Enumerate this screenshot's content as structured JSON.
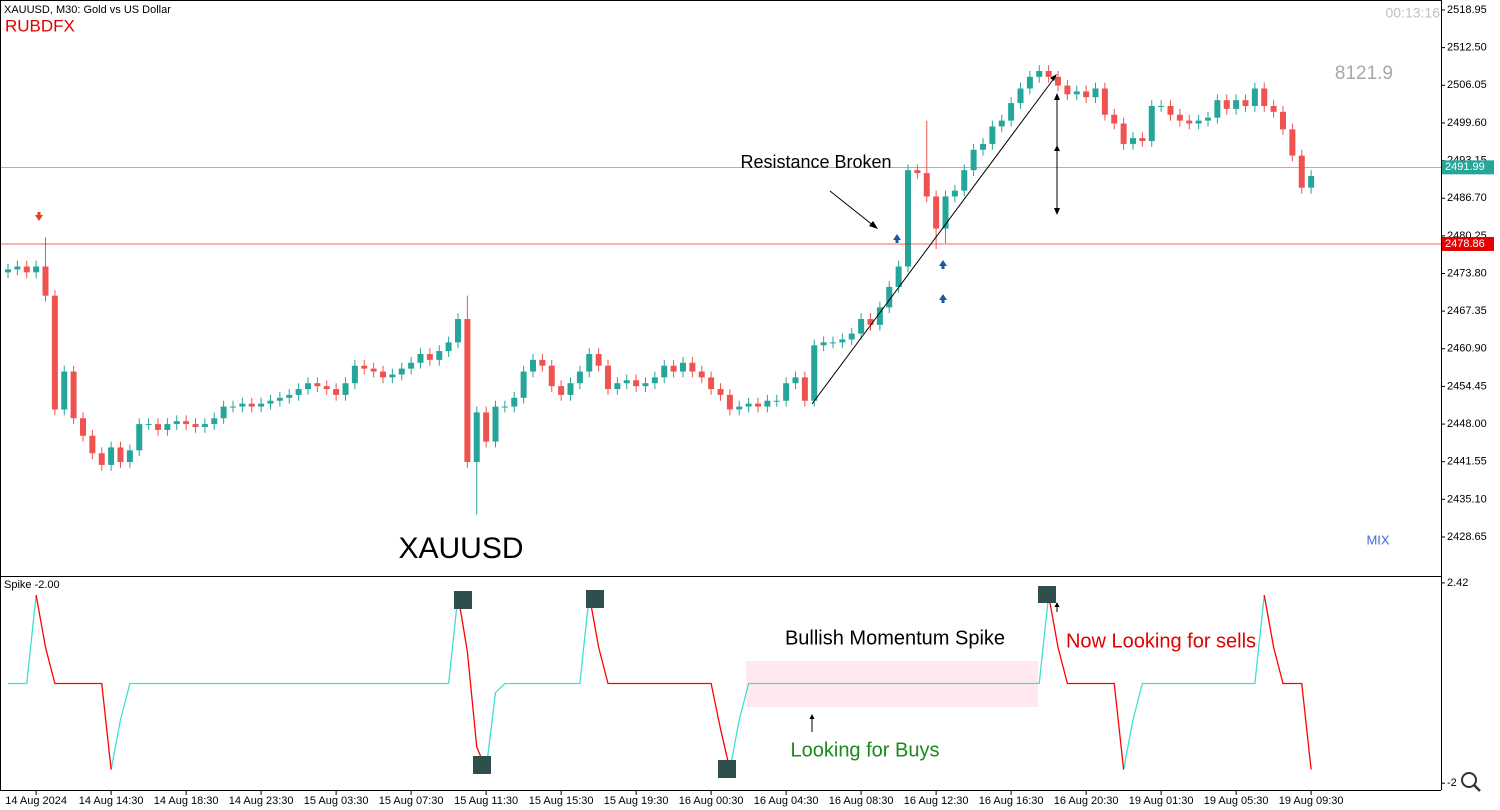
{
  "chart_data": [
    {
      "type": "candlestick",
      "title": "XAUUSD, M30:  Gold vs US Dollar",
      "broker": "RUBDFX",
      "timer": "00:13:16",
      "annotations": [
        "8121.9",
        "Resistance Broken",
        "XAUUSD",
        "MIX"
      ],
      "up_color": "#26a69a",
      "down_color": "#ef5350",
      "ylim": [
        2422.14,
        2520.32
      ],
      "yticks": [
        2518.95,
        {
          "value": 2512.5,
          "label": "2512.50"
        },
        2506.05,
        {
          "value": 2499.6,
          "label": "2499.60"
        },
        2493.15,
        {
          "value": 2486.7,
          "label": "2486.70"
        },
        2480.25,
        {
          "value": 2473.8,
          "label": "2473.80"
        },
        2467.35,
        {
          "value": 2460.9,
          "label": "2460.90"
        },
        2454.45,
        {
          "value": 2448,
          "label": "2448.00"
        },
        2441.55,
        {
          "value": 2435.1,
          "label": "2435.10"
        },
        2428.65
      ],
      "price_lines": [
        {
          "value": 2478.86,
          "color": "#e60000"
        },
        {
          "value": 2491.99,
          "color": "#26a69a"
        }
      ],
      "categories": [
        null,
        null,
        null,
        "14 Aug 2024",
        null,
        null,
        null,
        null,
        null,
        null,
        null,
        "14 Aug 14:30",
        null,
        null,
        null,
        null,
        null,
        null,
        null,
        "14 Aug 18:30",
        null,
        null,
        null,
        null,
        null,
        null,
        null,
        "14 Aug 23:30",
        null,
        null,
        null,
        null,
        null,
        null,
        null,
        "15 Aug 03:30",
        null,
        null,
        null,
        null,
        null,
        null,
        null,
        "15 Aug 07:30",
        null,
        null,
        null,
        null,
        null,
        null,
        null,
        "15 Aug 11:30",
        null,
        null,
        null,
        null,
        null,
        null,
        null,
        "15 Aug 15:30",
        null,
        null,
        null,
        null,
        null,
        null,
        null,
        "15 Aug 19:30",
        null,
        null,
        null,
        null,
        null,
        null,
        null,
        "16 Aug 00:30",
        null,
        null,
        null,
        null,
        null,
        null,
        null,
        "16 Aug 04:30",
        null,
        null,
        null,
        null,
        null,
        null,
        null,
        "16 Aug 08:30",
        null,
        null,
        null,
        null,
        null,
        null,
        null,
        "16 Aug 12:30",
        null,
        null,
        null,
        null,
        null,
        null,
        null,
        "16 Aug 16:30",
        null,
        null,
        null,
        null,
        null,
        null,
        null,
        "16 Aug 20:30",
        null,
        null,
        null,
        null,
        null,
        null,
        null,
        "19 Aug 01:30",
        null,
        null,
        null,
        null,
        null,
        null,
        null,
        "19 Aug 05:30",
        null,
        null,
        null,
        null,
        null,
        null,
        null,
        "19 Aug 09:30"
      ],
      "open": [
        2474,
        2474.5,
        2475,
        2474,
        2475,
        2470,
        2450.5,
        2457,
        2449,
        2446,
        2443,
        2441,
        2444,
        2441.5,
        2443.5,
        2448,
        2448,
        2447,
        2448,
        2448.5,
        2448,
        2447.5,
        2448,
        2449,
        2451,
        2451,
        2451.5,
        2451,
        2451.5,
        2452,
        2452.5,
        2453,
        2454,
        2455,
        2454.5,
        2454,
        2453,
        2455,
        2458,
        2457.5,
        2457,
        2456,
        2456.5,
        2457.5,
        2458.5,
        2460,
        2459,
        2460.5,
        2462,
        2466,
        2441.5,
        2450,
        2445,
        2451,
        2451,
        2452.5,
        2457,
        2459,
        2458,
        2454.5,
        2453,
        2455,
        2457,
        2460,
        2458,
        2454,
        2455,
        2455.5,
        2454.5,
        2455,
        2456,
        2458,
        2457,
        2458.5,
        2457,
        2456,
        2454,
        2453,
        2450.5,
        2451,
        2451.5,
        2451,
        2452,
        2452,
        2455,
        2456,
        2452,
        2461.5,
        2462,
        2462,
        2462.5,
        2463.5,
        2466,
        2465,
        2468,
        2471.5,
        2475,
        2491.5,
        2491,
        2487,
        2481.5,
        2487,
        2488,
        2491.5,
        2495,
        2496,
        2499,
        2500,
        2503,
        2505.5,
        2507.5,
        2508.5,
        2507.5,
        2506,
        2504.5,
        2505,
        2504,
        2505.5,
        2501,
        2499.5,
        2496,
        2497,
        2496.5,
        2502.5,
        2502.5,
        2501,
        2500,
        2499.5,
        2500,
        2500.5,
        2503.5,
        2502,
        2503.5,
        2502.5,
        2505.5,
        2502.5,
        2501.5,
        2498.5,
        2494,
        2488.5
      ],
      "high": [
        2475.5,
        2476,
        2476,
        2476,
        2480,
        2471,
        2458,
        2458,
        2450,
        2447,
        2444,
        2445,
        2445,
        2444.5,
        2449,
        2449,
        2449,
        2449,
        2449.5,
        2449.5,
        2449,
        2449,
        2450,
        2452,
        2452,
        2452.5,
        2452.5,
        2452.5,
        2453,
        2453.5,
        2454,
        2455,
        2456,
        2456,
        2455.5,
        2455,
        2456,
        2459,
        2459,
        2458.5,
        2458,
        2457.5,
        2458.5,
        2459.5,
        2461,
        2461,
        2461.5,
        2463,
        2467,
        2470,
        2451,
        2451,
        2452,
        2452,
        2453.5,
        2458,
        2460,
        2460,
        2459,
        2455.5,
        2456,
        2458,
        2461,
        2461,
        2459,
        2456,
        2456.5,
        2456.5,
        2456,
        2457,
        2459,
        2459,
        2459.5,
        2459.5,
        2458,
        2457,
        2455,
        2454,
        2452,
        2452.5,
        2452.5,
        2453,
        2453,
        2456,
        2457,
        2457,
        2462.5,
        2463,
        2463,
        2463.5,
        2464.5,
        2467,
        2467,
        2469,
        2472.5,
        2476,
        2492.5,
        2492.5,
        2500,
        2488,
        2488,
        2489,
        2492.5,
        2496,
        2497,
        2500,
        2501,
        2504,
        2506.5,
        2508.5,
        2509.5,
        2509.5,
        2508.5,
        2507,
        2506,
        2506,
        2506.5,
        2506.5,
        2502,
        2500.5,
        2498,
        2498,
        2503.5,
        2503.5,
        2503.5,
        2502,
        2501,
        2501,
        2501.5,
        2504.5,
        2504.5,
        2504.5,
        2504.5,
        2506.5,
        2506.5,
        2503.5,
        2502.5,
        2499.5,
        2495,
        2491.5
      ],
      "low": [
        2473,
        2473.5,
        2473,
        2473,
        2469,
        2449.5,
        2449.5,
        2448,
        2445,
        2442,
        2440,
        2440,
        2440.5,
        2440.5,
        2442.5,
        2447,
        2446,
        2446,
        2447,
        2447,
        2446.5,
        2446.5,
        2447,
        2448,
        2450,
        2450,
        2450,
        2450,
        2450.5,
        2451,
        2451.5,
        2452,
        2453,
        2453.5,
        2453,
        2452,
        2452,
        2454,
        2456.5,
        2456,
        2455,
        2455,
        2455.5,
        2456.5,
        2457.5,
        2458,
        2458,
        2459.5,
        2461,
        2440.5,
        2432.5,
        2444,
        2444,
        2450,
        2450,
        2451.5,
        2456,
        2457,
        2453.5,
        2452,
        2452,
        2454,
        2456,
        2457,
        2453,
        2453,
        2454,
        2453.5,
        2453.5,
        2454,
        2455,
        2456,
        2456,
        2456,
        2455,
        2453,
        2452,
        2449.5,
        2449.5,
        2450,
        2450,
        2450,
        2451,
        2451,
        2454,
        2451,
        2451,
        2460.5,
        2461,
        2461,
        2461.5,
        2462.5,
        2464,
        2464,
        2467,
        2470.5,
        2474,
        2490,
        2486,
        2478,
        2479,
        2486,
        2487,
        2490.5,
        2494,
        2495,
        2498,
        2499,
        2502,
        2504.5,
        2506.5,
        2506.5,
        2505,
        2503.5,
        2503.5,
        2503,
        2503,
        2500,
        2498.5,
        2495,
        2495,
        2495.5,
        2495.5,
        2501.5,
        2500,
        2499,
        2498.5,
        2498.5,
        2499,
        2499.5,
        2501,
        2501,
        2501.5,
        2501.5,
        2501.5,
        2500.5,
        2497.5,
        2493,
        2487.5,
        2487.5
      ],
      "close": [
        2474.5,
        2475,
        2474,
        2475,
        2470,
        2450.5,
        2457,
        2449,
        2446,
        2443,
        2441,
        2444,
        2441.5,
        2443.5,
        2448,
        2448,
        2447,
        2448,
        2448.5,
        2448,
        2447.5,
        2448,
        2449,
        2451,
        2451,
        2451.5,
        2451,
        2451.5,
        2452,
        2452.5,
        2453,
        2454,
        2455,
        2454.5,
        2454,
        2453,
        2455,
        2458,
        2457.5,
        2457,
        2456,
        2456.5,
        2457.5,
        2458.5,
        2460,
        2459,
        2460.5,
        2462,
        2466,
        2441.5,
        2450,
        2445,
        2451,
        2451,
        2452.5,
        2457,
        2459,
        2458,
        2454.5,
        2453,
        2455,
        2457,
        2460,
        2458,
        2454,
        2455,
        2455.5,
        2454.5,
        2455,
        2456,
        2458,
        2457,
        2458.5,
        2457,
        2456,
        2454,
        2453,
        2450.5,
        2451,
        2451.5,
        2451,
        2452,
        2452,
        2455,
        2456,
        2452,
        2461.5,
        2462,
        2462,
        2462.5,
        2463.5,
        2466,
        2465,
        2468,
        2471.5,
        2475,
        2491.5,
        2491,
        2487,
        2481.5,
        2487,
        2488,
        2491.5,
        2495,
        2496,
        2499,
        2500,
        2503,
        2505.5,
        2507.5,
        2508.5,
        2507.5,
        2506,
        2504.5,
        2505,
        2504,
        2505.5,
        2501,
        2499.5,
        2496,
        2497,
        2496.5,
        2502.5,
        2502.5,
        2501,
        2500,
        2499.5,
        2500,
        2500.5,
        2503.5,
        2502,
        2503.5,
        2502.5,
        2505.5,
        2502.5,
        2501.5,
        2498.5,
        2494,
        2488.5,
        2490.5
      ]
    },
    {
      "type": "line",
      "title": "Spike -2.00",
      "annotations": [
        "Bullish Momentum Spike",
        "Now Looking for sells",
        "Looking for Buys"
      ],
      "ylim": [
        -2.15,
        2.55
      ],
      "yticks": [
        2.42,
        -2
      ],
      "series": [
        {
          "color": "#40e0d0",
          "values": [
            0.2,
            0.2,
            0.2,
            2.15,
            null,
            null,
            null,
            null,
            null,
            null,
            null,
            -1.7,
            -0.6,
            0.2,
            0.2,
            0.2,
            0.2,
            0.2,
            0.2,
            0.2,
            0.2,
            0.2,
            0.2,
            0.2,
            0.2,
            0.2,
            0.2,
            0.2,
            0.2,
            0.2,
            0.2,
            0.2,
            0.2,
            0.2,
            0.2,
            0.2,
            0.2,
            0.2,
            0.2,
            0.2,
            0.2,
            0.2,
            0.2,
            0.2,
            0.2,
            0.2,
            0.2,
            0.2,
            2.15,
            null,
            null,
            -1.7,
            0,
            0.2,
            0.2,
            0.2,
            0.2,
            0.2,
            0.2,
            0.2,
            0.2,
            0.2,
            2.15,
            null,
            null,
            null,
            null,
            null,
            null,
            null,
            null,
            null,
            null,
            null,
            null,
            null,
            null,
            -1.7,
            -0.6,
            0.2,
            0.2,
            0.2,
            0.2,
            0.2,
            0.2,
            0.2,
            0.2,
            0.2,
            0.2,
            0.2,
            0.2,
            0.2,
            0.2,
            0.2,
            0.2,
            0.2,
            0.2,
            0.2,
            0.2,
            0.2,
            0.2,
            0.2,
            0.2,
            0.2,
            0.2,
            0.2,
            0.2,
            0.2,
            0.2,
            0.2,
            0.2,
            2.15,
            null,
            null,
            null,
            null,
            null,
            null,
            null,
            -1.7,
            -0.6,
            0.2,
            0.2,
            0.2,
            0.2,
            0.2,
            0.2,
            0.2,
            0.2,
            0.2,
            0.2,
            0.2,
            0.2,
            0.2,
            2.15,
            null,
            null,
            null,
            null,
            null
          ]
        },
        {
          "color": "#ff0000",
          "values": [
            null,
            null,
            null,
            2.15,
            1.0,
            0.2,
            0.2,
            0.2,
            0.2,
            0.2,
            0.2,
            -1.7,
            null,
            null,
            null,
            null,
            null,
            null,
            null,
            null,
            null,
            null,
            null,
            null,
            null,
            null,
            null,
            null,
            null,
            null,
            null,
            null,
            null,
            null,
            null,
            null,
            null,
            null,
            null,
            null,
            null,
            null,
            null,
            null,
            null,
            null,
            null,
            null,
            2.15,
            0.9,
            -1.2,
            -1.7,
            null,
            null,
            null,
            null,
            null,
            null,
            null,
            null,
            null,
            null,
            2.15,
            1.0,
            0.2,
            0.2,
            0.2,
            0.2,
            0.2,
            0.2,
            0.2,
            0.2,
            0.2,
            0.2,
            0.2,
            0.2,
            -0.8,
            -1.7,
            null,
            null,
            null,
            null,
            null,
            null,
            null,
            null,
            null,
            null,
            null,
            null,
            null,
            null,
            null,
            null,
            null,
            null,
            null,
            null,
            null,
            null,
            null,
            null,
            null,
            null,
            null,
            null,
            null,
            null,
            null,
            null,
            null,
            2.15,
            1.0,
            0.2,
            0.2,
            0.2,
            0.2,
            0.2,
            0.2,
            -1.7,
            null,
            null,
            null,
            null,
            null,
            null,
            null,
            null,
            null,
            null,
            null,
            null,
            null,
            null,
            2.15,
            1.0,
            0.2,
            0.2,
            0.2,
            -1.7
          ]
        }
      ]
    }
  ]
}
